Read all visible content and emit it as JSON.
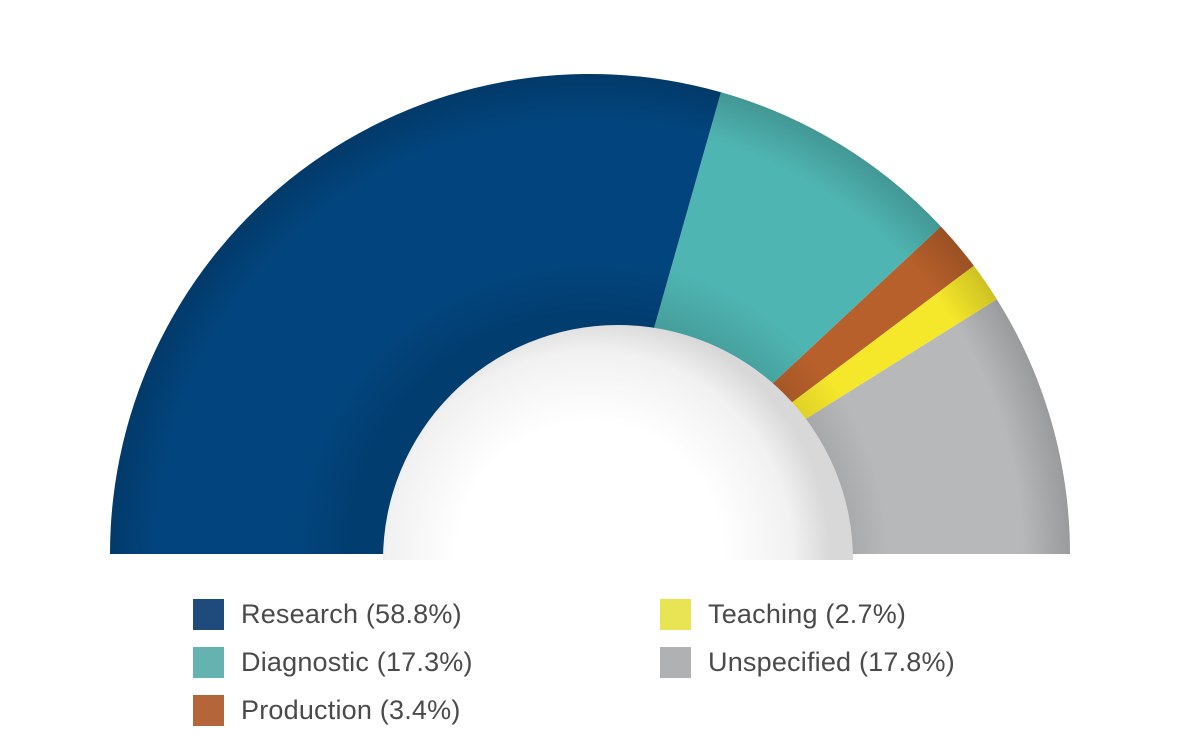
{
  "chart_data": {
    "type": "pie",
    "variant": "half-donut",
    "slices": [
      {
        "label": "Research (58.8%)",
        "value": 58.8,
        "color": "#02457e"
      },
      {
        "label": "Diagnostic (17.3%)",
        "value": 17.3,
        "color": "#4fb5b2"
      },
      {
        "label": "Production (3.4%)",
        "value": 3.4,
        "color": "#b8602b"
      },
      {
        "label": "Teaching (2.7%)",
        "value": 2.7,
        "color": "#f5e72a"
      },
      {
        "label": "Unspecified (17.8%)",
        "value": 17.8,
        "color": "#b6b8ba"
      }
    ],
    "legend_position": "bottom",
    "title": ""
  },
  "legend": {
    "items": [
      {
        "label": "Research (58.8%)",
        "color": "#1e4a7c"
      },
      {
        "label": "Diagnostic (17.3%)",
        "color": "#64b3b0"
      },
      {
        "label": "Production (3.4%)",
        "color": "#b5653a"
      },
      {
        "label": "Teaching (2.7%)",
        "color": "#e8e454"
      },
      {
        "label": "Unspecified (17.8%)",
        "color": "#b0b1b3"
      }
    ]
  }
}
